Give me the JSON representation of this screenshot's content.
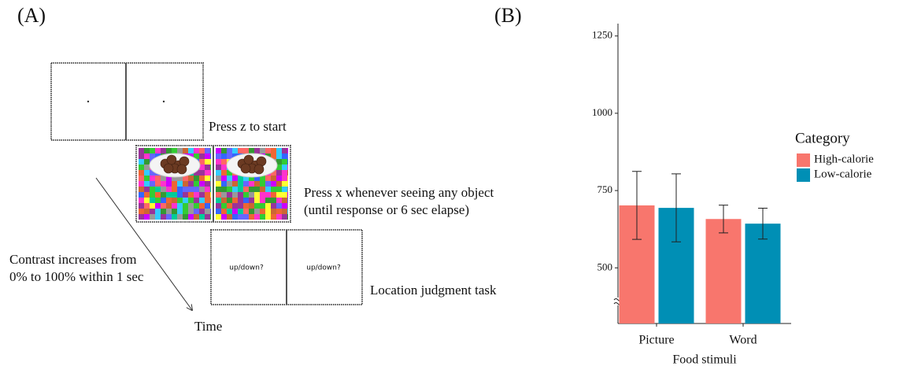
{
  "panel_a": {
    "label": "(A)",
    "start_text": "Press z to start",
    "object_text": [
      "Press x whenever seeing any object",
      "(until response or 6 sec elapse)"
    ],
    "prompts": [
      "up/down?",
      "up/down?"
    ],
    "location_text": "Location judgment task",
    "contrast_text": [
      "Contrast increases from",
      "0% to 100% within 1 sec"
    ],
    "time_label": "Time"
  },
  "chart_data": {
    "type": "bar",
    "label": "(B)",
    "x_label": "Food stimuli",
    "categories": [
      "Picture",
      "Word"
    ],
    "series": [
      {
        "name": "High-calorie",
        "color": "#f8766d",
        "values": [
          702,
          658
        ],
        "errors": [
          110,
          45
        ]
      },
      {
        "name": "Low-calorie",
        "color": "#008fb5",
        "values": [
          694,
          643
        ],
        "errors": [
          110,
          50
        ]
      }
    ],
    "ylim": [
      320,
      1290
    ],
    "yticks": [
      500,
      750,
      1000,
      1250
    ],
    "axis_break": true,
    "legend_title": "Category",
    "legend": "right"
  }
}
